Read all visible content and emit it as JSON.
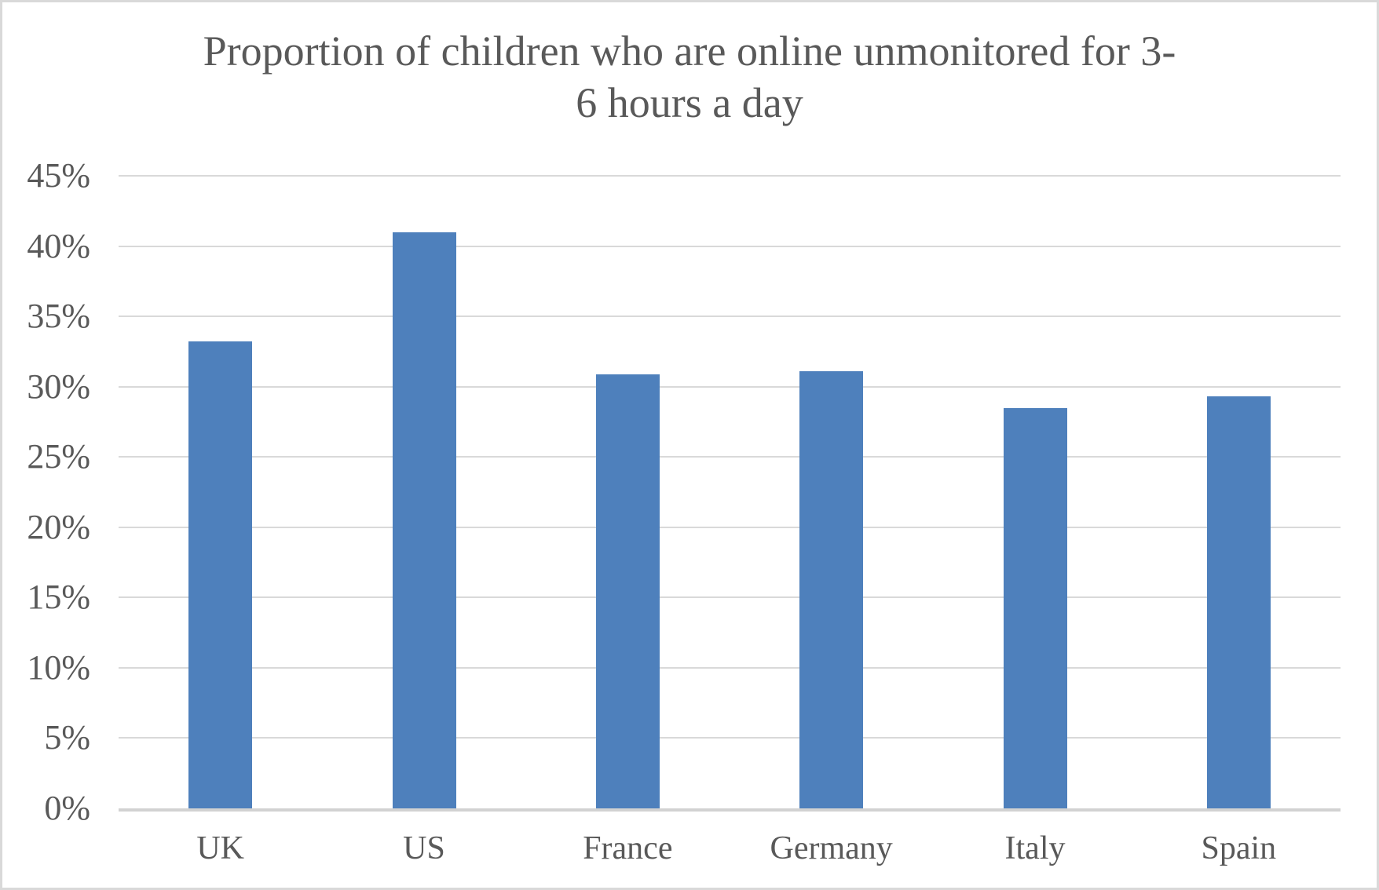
{
  "chart_data": {
    "type": "bar",
    "title": "Proportion of children who are online unmonitored for 3-6 hours a day",
    "title_lines": [
      "Proportion of children who are online unmonitored for 3-",
      "6 hours a day"
    ],
    "categories": [
      "UK",
      "US",
      "France",
      "Germany",
      "Italy",
      "Spain"
    ],
    "values": [
      33.2,
      41.0,
      30.9,
      31.1,
      28.5,
      29.3
    ],
    "value_unit": "%",
    "xlabel": "",
    "ylabel": "",
    "ylim": [
      0,
      45
    ],
    "ytick_step": 5,
    "ytick_labels": [
      "0%",
      "5%",
      "10%",
      "15%",
      "20%",
      "25%",
      "30%",
      "35%",
      "40%",
      "45%"
    ],
    "grid": true,
    "legend_position": "none",
    "colors": {
      "bar": "#4e80bc",
      "gridline": "#d9d9d9",
      "axis_line": "#d2d2d2",
      "text": "#595959",
      "background": "#ffffff",
      "frame_border": "#d9d9d9"
    }
  }
}
